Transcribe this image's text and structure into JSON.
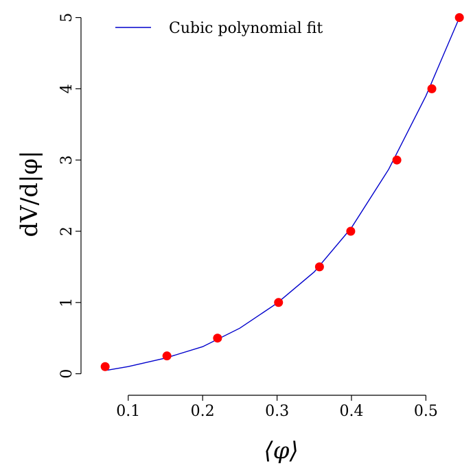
{
  "chart_data": {
    "type": "scatter",
    "xlabel": "⟨φ⟩",
    "ylabel": "dV/d|φ|",
    "xlim": [
      0.055,
      0.555
    ],
    "ylim": [
      -0.1,
      5.15
    ],
    "x_ticks": [
      0.1,
      0.2,
      0.3,
      0.4,
      0.5
    ],
    "x_tick_labels": [
      "0.1",
      "0.2",
      "0.3",
      "0.4",
      "0.5"
    ],
    "y_ticks": [
      0,
      1,
      2,
      3,
      4,
      5
    ],
    "y_tick_labels": [
      "0",
      "1",
      "2",
      "3",
      "4",
      "5"
    ],
    "y_tick_label_rotation": "vertical",
    "grid": false,
    "series": [
      {
        "kind": "points",
        "color": "#ff0000",
        "marker": "filled-circle",
        "x": [
          0.069,
          0.152,
          0.22,
          0.302,
          0.357,
          0.399,
          0.461,
          0.508,
          0.545
        ],
        "y": [
          0.1,
          0.25,
          0.5,
          1.0,
          1.5,
          2.0,
          3.0,
          4.0,
          5.0
        ]
      },
      {
        "kind": "line",
        "name": "Cubic polynomial fit",
        "color": "#0000cc",
        "x": [
          0.072,
          0.1,
          0.15,
          0.2,
          0.25,
          0.3,
          0.35,
          0.4,
          0.45,
          0.5,
          0.545
        ],
        "y": [
          0.05,
          0.1,
          0.22,
          0.38,
          0.64,
          0.99,
          1.43,
          2.05,
          2.87,
          3.9,
          5.0
        ]
      }
    ],
    "legend": {
      "position": "top-left",
      "entries": [
        "Cubic polynomial fit"
      ]
    }
  }
}
